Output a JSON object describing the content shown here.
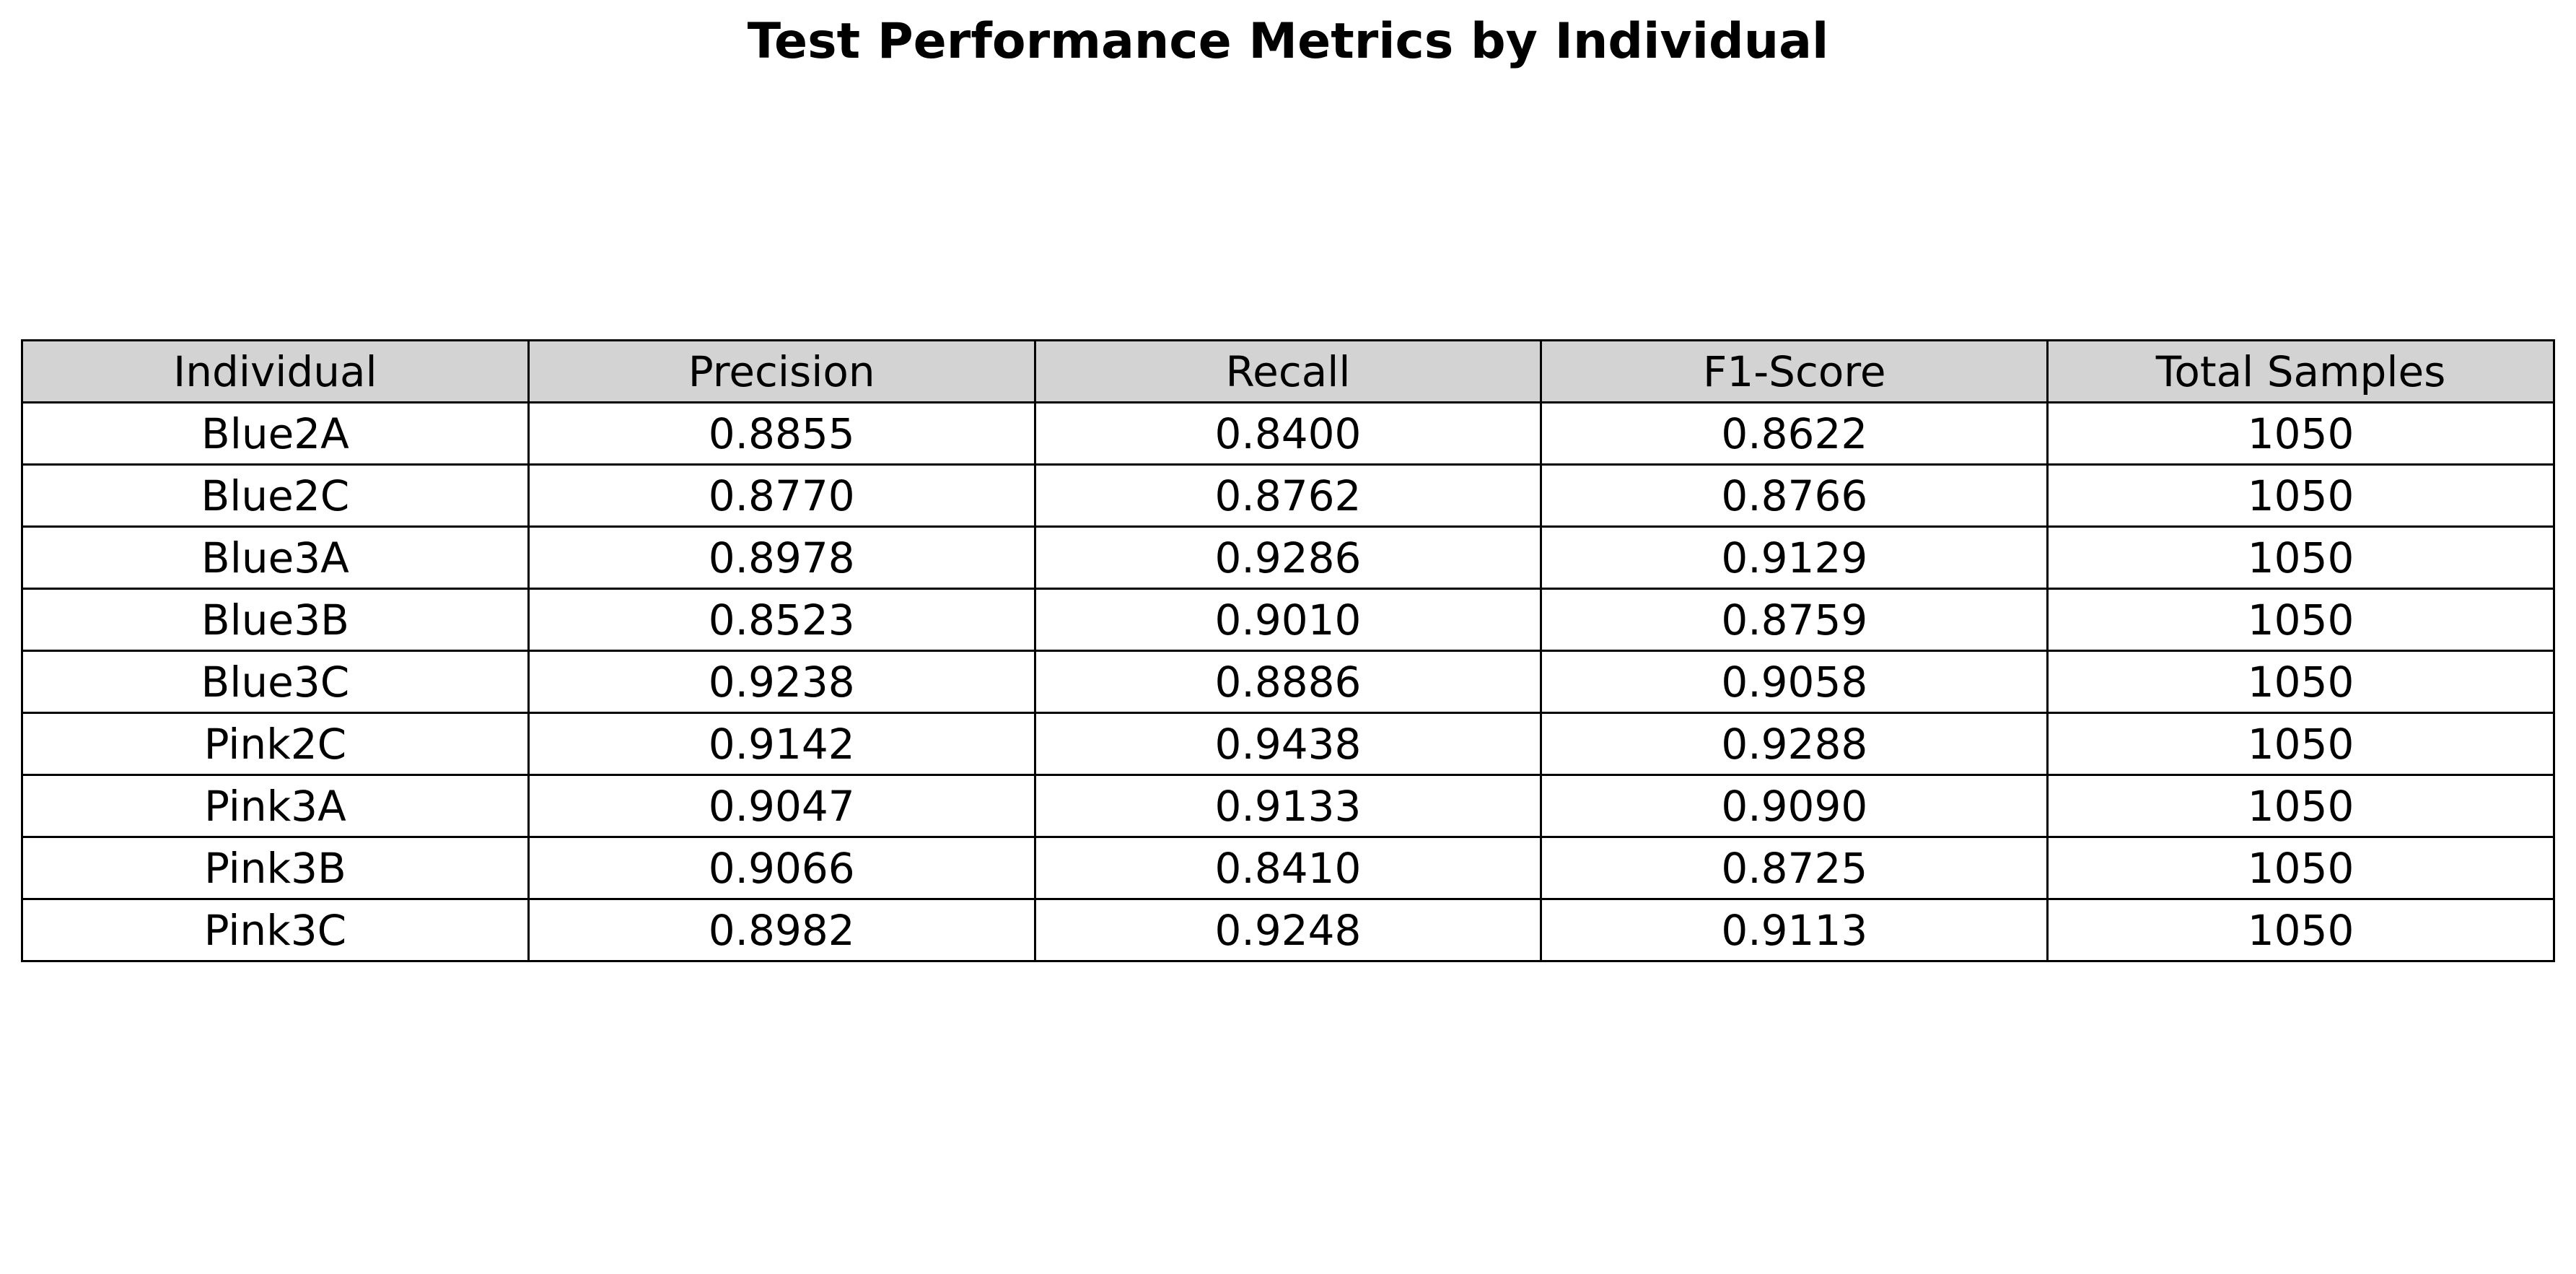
{
  "chart_data": {
    "type": "table",
    "title": "Test Performance Metrics by Individual",
    "header_color": "#d3d3d3",
    "columns": [
      "Individual",
      "Precision",
      "Recall",
      "F1-Score",
      "Total Samples"
    ],
    "rows": [
      [
        "Blue2A",
        "0.8855",
        "0.8400",
        "0.8622",
        "1050"
      ],
      [
        "Blue2C",
        "0.8770",
        "0.8762",
        "0.8766",
        "1050"
      ],
      [
        "Blue3A",
        "0.8978",
        "0.9286",
        "0.9129",
        "1050"
      ],
      [
        "Blue3B",
        "0.8523",
        "0.9010",
        "0.8759",
        "1050"
      ],
      [
        "Blue3C",
        "0.9238",
        "0.8886",
        "0.9058",
        "1050"
      ],
      [
        "Pink2C",
        "0.9142",
        "0.9438",
        "0.9288",
        "1050"
      ],
      [
        "Pink3A",
        "0.9047",
        "0.9133",
        "0.9090",
        "1050"
      ],
      [
        "Pink3B",
        "0.9066",
        "0.8410",
        "0.8725",
        "1050"
      ],
      [
        "Pink3C",
        "0.8982",
        "0.9248",
        "0.9113",
        "1050"
      ]
    ]
  }
}
